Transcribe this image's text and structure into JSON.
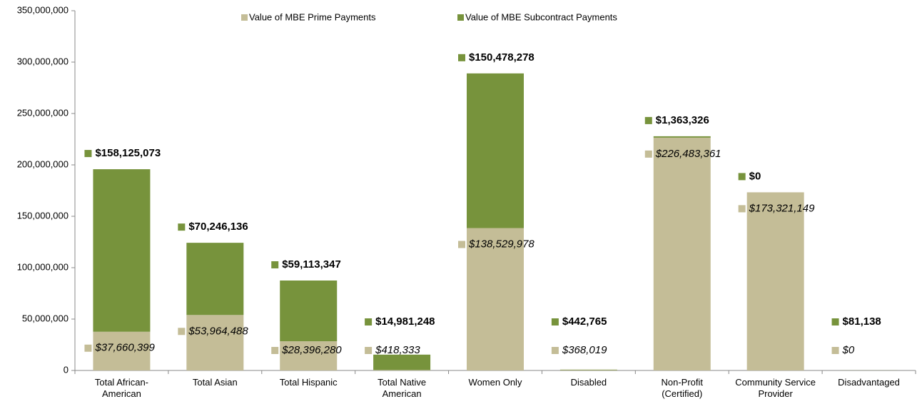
{
  "chart_data": {
    "type": "stacked_bar",
    "categories": [
      "Total African-American",
      "Total Asian",
      "Total Hispanic",
      "Total Native American",
      "Women Only",
      "Disabled",
      "Non-Profit (Certified)",
      "Community Service Provider",
      "Disadvantaged"
    ],
    "series": [
      {
        "name": "Value of MBE Prime Payments",
        "color": "#c4bd97",
        "values": [
          37660399,
          53964488,
          28396280,
          418333,
          138529978,
          368019,
          226483361,
          173321149,
          0
        ],
        "value_labels": [
          "$37,660,399",
          "$53,964,488",
          "$28,396,280",
          "$418,333",
          "$138,529,978",
          "$368,019",
          "$226,483,361",
          "$173,321,149",
          "$0"
        ]
      },
      {
        "name": "Value of MBE Subcontract Payments",
        "color": "#77933c",
        "values": [
          158125073,
          70246136,
          59113347,
          14981248,
          150478278,
          442765,
          1363326,
          0,
          81138
        ],
        "value_labels": [
          "$158,125,073",
          "$70,246,136",
          "$59,113,347",
          "$14,981,248",
          "$150,478,278",
          "$442,765",
          "$1,363,326",
          "$0",
          "$81,138"
        ]
      }
    ],
    "ylim": [
      0,
      350000000
    ],
    "yticks": [
      0,
      {
        "value": 50000000,
        "label": "50,000,000"
      },
      {
        "value": 100000000,
        "label": "100,000,000"
      },
      {
        "value": 150000000,
        "label": "150,000,000"
      },
      {
        "value": 200000000,
        "label": "200,000,000"
      },
      {
        "value": 250000000,
        "label": "250,000,000"
      },
      {
        "value": 300000000,
        "label": "300,000,000"
      },
      {
        "value": 350000000,
        "label": "350,000,000"
      }
    ],
    "legend": "top"
  }
}
